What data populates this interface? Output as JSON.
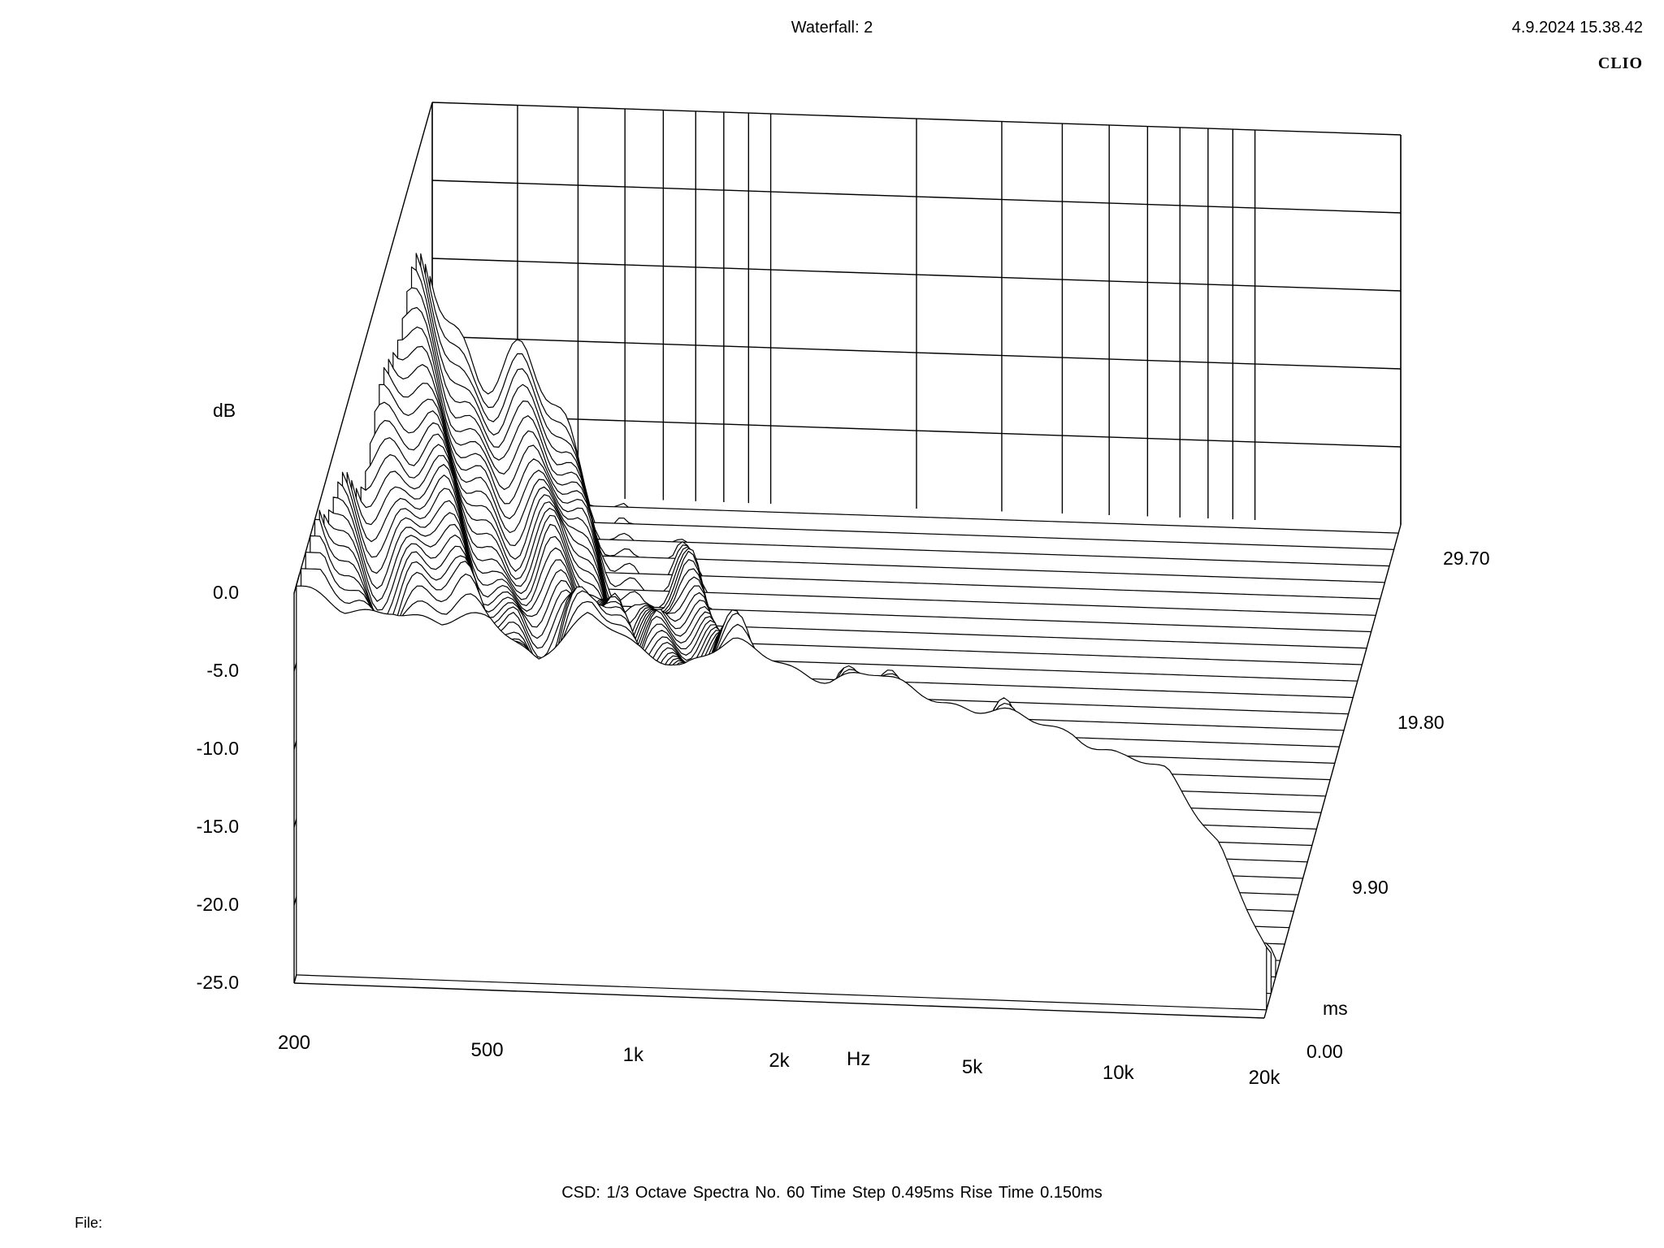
{
  "header": {
    "title": "Waterfall: 2",
    "timestamp": "4.9.2024 15.38.42",
    "brand": "CLIO"
  },
  "footer": {
    "settings": "CSD:   1/3 Octave   Spectra No. 60   Time Step 0.495ms   Rise Time 0.150ms",
    "file_label": "File:"
  },
  "chart_data": {
    "type": "waterfall",
    "y_axis": {
      "unit": "dB",
      "range": [
        -25,
        0
      ],
      "ticks": [
        "0.0",
        "-5.0",
        "-10.0",
        "-15.0",
        "-20.0",
        "-25.0"
      ]
    },
    "x_axis": {
      "unit": "Hz",
      "scale": "log",
      "range": [
        200,
        20000
      ],
      "ticks": [
        "200",
        "500",
        "1k",
        "2k",
        "5k",
        "10k",
        "20k"
      ]
    },
    "z_axis": {
      "unit": "ms",
      "range": [
        0,
        29.7
      ],
      "ticks": [
        "0.00",
        "9.90",
        "19.80",
        "29.70"
      ]
    },
    "spectra_count": 60,
    "time_step_ms": 0.495,
    "rise_time_ms": 0.15,
    "base_response": {
      "freq_hz": [
        200,
        250,
        315,
        400,
        500,
        630,
        800,
        1000,
        1250,
        1600,
        2000,
        2500,
        3150,
        4000,
        5000,
        6300,
        8000,
        10000,
        12500,
        16000,
        20000
      ],
      "level_db": [
        0.0,
        -1.5,
        -0.8,
        -2.0,
        -1.2,
        -3.5,
        -1.0,
        -2.5,
        -3.5,
        -2.2,
        -3.0,
        -4.0,
        -3.8,
        -4.5,
        -5.5,
        -6.0,
        -6.5,
        -8.0,
        -9.0,
        -13.0,
        -20.0
      ]
    }
  }
}
